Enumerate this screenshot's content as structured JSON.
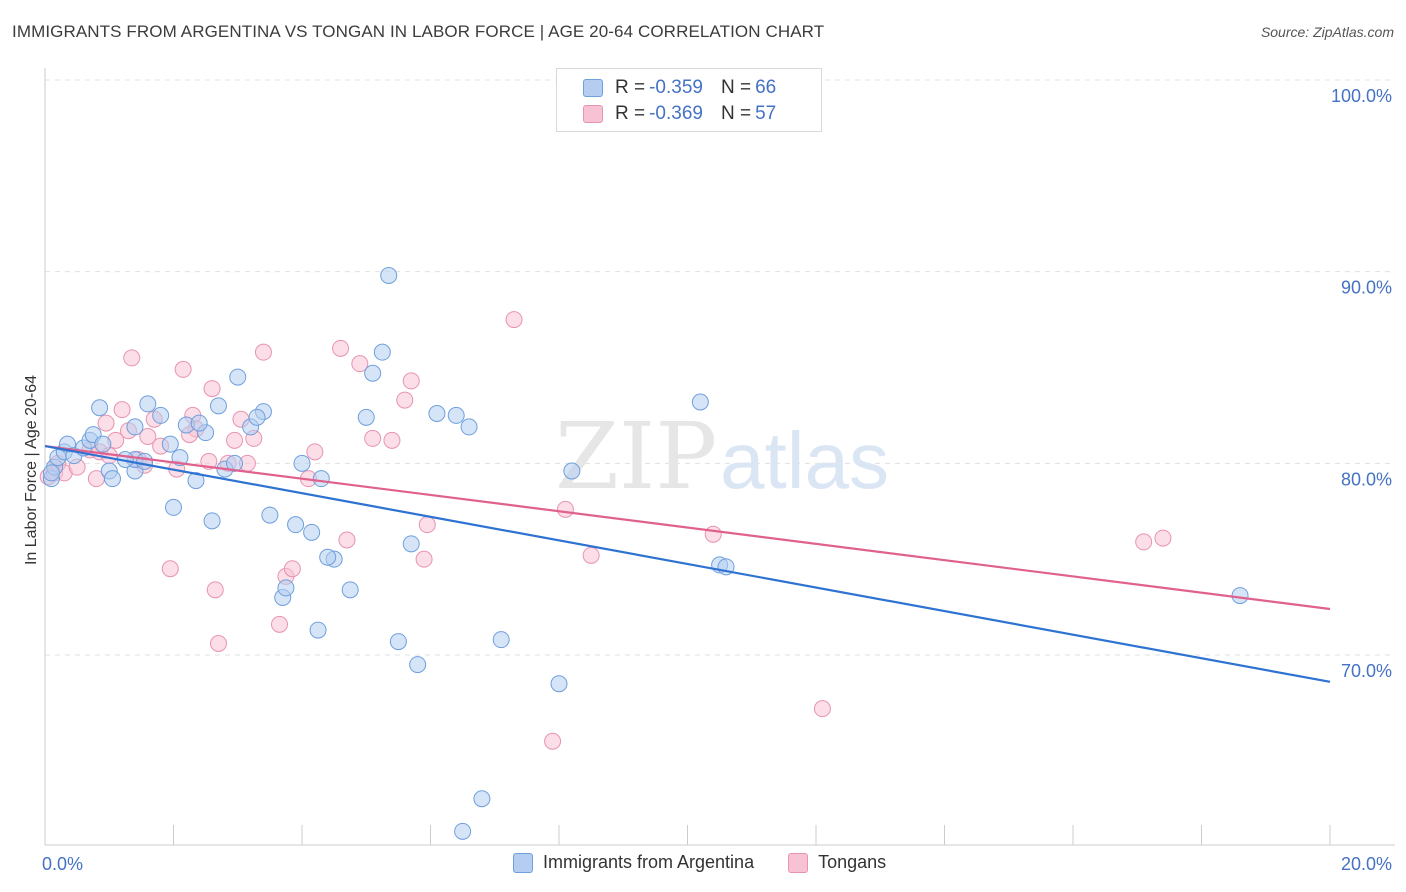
{
  "title": "IMMIGRANTS FROM ARGENTINA VS TONGAN IN LABOR FORCE | AGE 20-64 CORRELATION CHART",
  "source": "Source: ZipAtlas.com",
  "watermark": {
    "zip": "ZIP",
    "atlas": "atlas"
  },
  "colors": {
    "blue_fill": "#b4cdf0",
    "blue_stroke": "#6f9fdc",
    "blue_line": "#2e73d1",
    "pink_fill": "#f7c3d4",
    "pink_stroke": "#e893b1",
    "pink_line": "#e0608e",
    "axis_text": "#4472c4",
    "grid": "#e0e0e0"
  },
  "legend": {
    "rows": [
      {
        "r_label": "R =",
        "r_value": "-0.359",
        "n_label": "N =",
        "n_value": "66"
      },
      {
        "r_label": "R =",
        "r_value": "-0.369",
        "n_label": "N =",
        "n_value": "57"
      }
    ]
  },
  "bottom_legend": [
    "Immigrants from Argentina",
    "Tongans"
  ],
  "chart_data": {
    "type": "scatter",
    "title": "IMMIGRANTS FROM ARGENTINA VS TONGAN IN LABOR FORCE | AGE 20-64 CORRELATION CHART",
    "xlabel": "",
    "ylabel": "In Labor Force | Age 20-64",
    "xlim": [
      0,
      20
    ],
    "ylim": [
      60,
      101
    ],
    "x_tick_labels": [
      "0.0%",
      "20.0%"
    ],
    "y_ticks": [
      70,
      80,
      90,
      100
    ],
    "y_tick_labels": [
      "70.0%",
      "80.0%",
      "90.0%",
      "100.0%"
    ],
    "grid": true,
    "legend_position": "top-center",
    "series": [
      {
        "name": "Immigrants from Argentina",
        "r": -0.359,
        "n": 66,
        "trend": {
          "x": [
            0,
            20
          ],
          "y": [
            80.9,
            68.6
          ]
        },
        "points": [
          [
            0.1,
            79.2
          ],
          [
            0.15,
            79.8
          ],
          [
            0.2,
            80.3
          ],
          [
            0.3,
            80.6
          ],
          [
            0.35,
            81.0
          ],
          [
            0.45,
            80.4
          ],
          [
            0.6,
            80.8
          ],
          [
            0.7,
            81.2
          ],
          [
            0.75,
            81.5
          ],
          [
            0.85,
            82.9
          ],
          [
            0.9,
            81.0
          ],
          [
            1.0,
            79.6
          ],
          [
            1.05,
            79.2
          ],
          [
            1.4,
            81.9
          ],
          [
            1.4,
            79.6
          ],
          [
            1.4,
            80.2
          ],
          [
            1.6,
            83.1
          ],
          [
            1.55,
            80.1
          ],
          [
            1.8,
            82.5
          ],
          [
            1.95,
            81.0
          ],
          [
            2.0,
            77.7
          ],
          [
            2.1,
            80.3
          ],
          [
            2.2,
            82.0
          ],
          [
            2.35,
            79.1
          ],
          [
            2.5,
            81.6
          ],
          [
            2.6,
            77.0
          ],
          [
            2.7,
            83.0
          ],
          [
            2.8,
            79.7
          ],
          [
            2.95,
            80.0
          ],
          [
            3.0,
            84.5
          ],
          [
            3.2,
            81.9
          ],
          [
            3.4,
            82.7
          ],
          [
            3.5,
            77.3
          ],
          [
            3.7,
            73.0
          ],
          [
            3.75,
            73.5
          ],
          [
            3.9,
            76.8
          ],
          [
            4.0,
            80.0
          ],
          [
            4.15,
            76.4
          ],
          [
            4.3,
            79.2
          ],
          [
            4.5,
            75.0
          ],
          [
            4.25,
            71.3
          ],
          [
            4.75,
            73.4
          ],
          [
            5.0,
            82.4
          ],
          [
            5.1,
            84.7
          ],
          [
            5.25,
            85.8
          ],
          [
            5.35,
            89.8
          ],
          [
            5.5,
            70.7
          ],
          [
            5.7,
            75.8
          ],
          [
            5.8,
            69.5
          ],
          [
            6.1,
            82.6
          ],
          [
            6.4,
            82.5
          ],
          [
            6.6,
            81.9
          ],
          [
            6.8,
            62.5
          ],
          [
            6.5,
            60.8
          ],
          [
            7.1,
            70.8
          ],
          [
            8.0,
            68.5
          ],
          [
            8.2,
            79.6
          ],
          [
            10.2,
            83.2
          ],
          [
            10.5,
            74.7
          ],
          [
            10.6,
            74.6
          ],
          [
            18.6,
            73.1
          ],
          [
            0.1,
            79.5
          ],
          [
            1.25,
            80.2
          ],
          [
            2.4,
            82.1
          ],
          [
            3.3,
            82.4
          ],
          [
            4.4,
            75.1
          ]
        ]
      },
      {
        "name": "Tongans",
        "r": -0.369,
        "n": 57,
        "trend": {
          "x": [
            0,
            20
          ],
          "y": [
            80.9,
            72.4
          ]
        },
        "points": [
          [
            0.05,
            79.3
          ],
          [
            0.15,
            79.5
          ],
          [
            0.2,
            80.0
          ],
          [
            0.3,
            79.5
          ],
          [
            0.5,
            79.8
          ],
          [
            0.7,
            80.7
          ],
          [
            0.8,
            79.2
          ],
          [
            0.85,
            80.6
          ],
          [
            0.95,
            82.1
          ],
          [
            1.1,
            81.2
          ],
          [
            1.2,
            82.8
          ],
          [
            1.3,
            81.7
          ],
          [
            1.35,
            85.5
          ],
          [
            1.45,
            80.2
          ],
          [
            1.55,
            79.9
          ],
          [
            1.6,
            81.4
          ],
          [
            1.7,
            82.3
          ],
          [
            1.8,
            80.9
          ],
          [
            1.95,
            74.5
          ],
          [
            2.05,
            79.7
          ],
          [
            2.15,
            84.9
          ],
          [
            2.3,
            82.5
          ],
          [
            2.35,
            81.8
          ],
          [
            2.55,
            80.1
          ],
          [
            2.6,
            83.9
          ],
          [
            2.65,
            73.4
          ],
          [
            2.7,
            70.6
          ],
          [
            2.85,
            80.0
          ],
          [
            2.95,
            81.2
          ],
          [
            3.05,
            82.3
          ],
          [
            3.15,
            80.0
          ],
          [
            3.25,
            81.3
          ],
          [
            3.4,
            85.8
          ],
          [
            3.65,
            71.6
          ],
          [
            3.75,
            74.1
          ],
          [
            3.85,
            74.5
          ],
          [
            4.1,
            79.2
          ],
          [
            4.2,
            80.6
          ],
          [
            4.6,
            86.0
          ],
          [
            4.7,
            76.0
          ],
          [
            4.9,
            85.2
          ],
          [
            5.1,
            81.3
          ],
          [
            5.4,
            81.2
          ],
          [
            5.6,
            83.3
          ],
          [
            5.7,
            84.3
          ],
          [
            5.9,
            75.0
          ],
          [
            5.95,
            76.8
          ],
          [
            7.3,
            87.5
          ],
          [
            7.9,
            65.5
          ],
          [
            8.1,
            77.6
          ],
          [
            8.5,
            75.2
          ],
          [
            10.4,
            76.3
          ],
          [
            12.1,
            67.2
          ],
          [
            17.1,
            75.9
          ],
          [
            17.4,
            76.1
          ],
          [
            1.0,
            80.4
          ],
          [
            2.25,
            81.5
          ]
        ]
      }
    ]
  }
}
